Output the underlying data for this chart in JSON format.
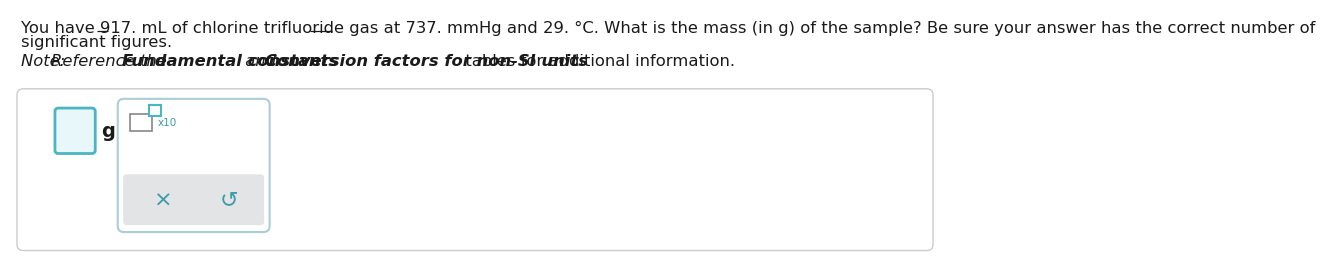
{
  "line1": "You have 917. mL of chlorine trifluoride gas at 737. mmHg and 29. °C. What is the mass (in g) of the sample? Be sure your answer has the correct number of",
  "line2": "significant figures.",
  "note_normal": "Note: ",
  "note_ref": "Reference the ",
  "note_bold1": "Fundamental constants",
  "note_and": " and ",
  "note_bold2": "Conversion factors for non-SI units",
  "note_tail": " tables for additional information.",
  "bg_color": "#ffffff",
  "text_color": "#1a1a1a",
  "teal_color": "#4ab5c4",
  "teal_dark": "#3a9bab",
  "border_color": "#cccccc",
  "popup_border": "#aacdd6",
  "button_bg": "#e2e4e6",
  "g_label": "g",
  "x10_label": "x10",
  "cross_symbol": "×",
  "undo_symbol": "↺",
  "input_fill": "#e8f7f9"
}
